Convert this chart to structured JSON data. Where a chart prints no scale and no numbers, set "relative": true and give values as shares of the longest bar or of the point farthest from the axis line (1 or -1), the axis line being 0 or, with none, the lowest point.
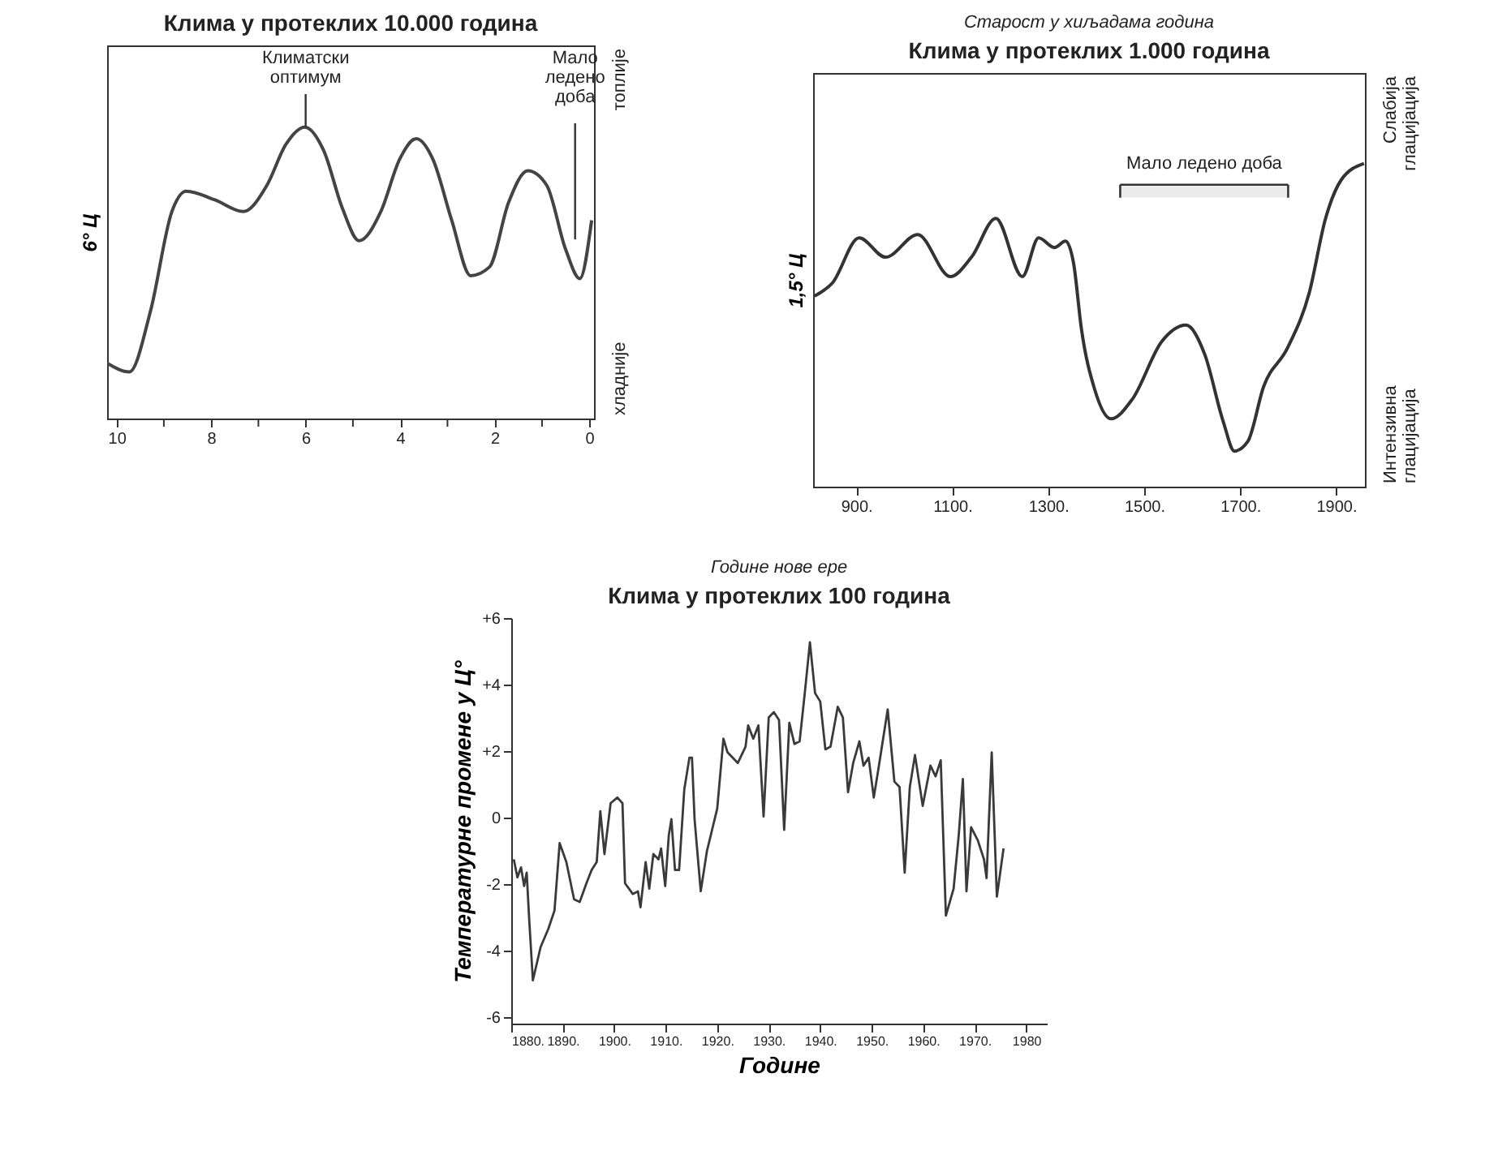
{
  "chart_data": [
    {
      "type": "line",
      "title": "Клима у протеклих 10.000 година",
      "ylabel": "6° Ц",
      "relative": true,
      "color": "#444444",
      "x": [
        10.2,
        9.73,
        9.28,
        8.83,
        8.53,
        7.92,
        7.32,
        6.82,
        6.42,
        6.02,
        5.62,
        5.22,
        4.87,
        4.41,
        4.01,
        3.66,
        3.31,
        2.91,
        2.51,
        2.11,
        1.71,
        1.3,
        0.9,
        0.5,
        0.2,
        -0.05
      ],
      "values": [
        0.19,
        0.16,
        0.37,
        0.71,
        0.78,
        0.75,
        0.71,
        0.8,
        0.94,
        1.0,
        0.92,
        0.72,
        0.61,
        0.71,
        0.89,
        0.96,
        0.89,
        0.68,
        0.49,
        0.52,
        0.74,
        0.85,
        0.8,
        0.58,
        0.48,
        0.68
      ],
      "xlim": [
        10.2,
        -0.1
      ],
      "xticks": [
        10,
        {
          "value": 9,
          "label": null
        },
        8,
        {
          "value": 7,
          "label": null
        },
        6,
        {
          "value": 5,
          "label": null
        },
        4,
        {
          "value": 3,
          "label": null
        },
        2,
        {
          "value": 1,
          "label": null
        },
        0
      ],
      "ref_lines": [
        {
          "axis": "x",
          "value": 0.3,
          "label": "Мало ледено доба"
        }
      ],
      "annotations": [
        {
          "text": "Климатски оптимум",
          "x": 6.0,
          "y": 1.0
        },
        "топлије",
        "хладније"
      ]
    },
    {
      "type": "line",
      "title": "Клима у протеклих 1.000 година",
      "subtitle": "Старост у хиљадама година",
      "ylabel": "1,5° Ц",
      "relative": true,
      "color": "#333333",
      "x": [
        813,
        850,
        906,
        961,
        1028,
        1096,
        1140,
        1191,
        1246,
        1280,
        1313,
        1336,
        1353,
        1369,
        1397,
        1431,
        1475,
        1537,
        1587,
        1626,
        1665,
        1688,
        1716,
        1749,
        1799,
        1844,
        1878,
        1911,
        1958
      ],
      "values": [
        0.59,
        0.63,
        0.77,
        0.71,
        0.78,
        0.65,
        0.71,
        0.83,
        0.65,
        0.77,
        0.74,
        0.76,
        0.69,
        0.49,
        0.3,
        0.21,
        0.27,
        0.45,
        0.5,
        0.41,
        0.2,
        0.11,
        0.14,
        0.31,
        0.43,
        0.6,
        0.83,
        0.95,
        1.0
      ],
      "xlim": [
        810,
        1960
      ],
      "xticks": [
        {
          "value": 900,
          "label": "900."
        },
        {
          "value": 1100,
          "label": "1100."
        },
        {
          "value": 1300,
          "label": "1300."
        },
        {
          "value": 1500,
          "label": "1500."
        },
        {
          "value": 1700,
          "label": "1700."
        },
        {
          "value": 1900,
          "label": "1900."
        }
      ],
      "bands": [
        {
          "axis": "x",
          "from": 1450,
          "to": 1800,
          "label": "Мало ледено доба"
        }
      ],
      "annotations": [
        "Слабија глацијација",
        "Интензивна глацијација"
      ]
    },
    {
      "type": "line",
      "title": "Клима у протеклих 100 година",
      "subtitle": "Године нове ере",
      "xlabel": "Године",
      "ylabel": "Температурне промене у Ц°",
      "color": "#3a3a3a",
      "x": [
        1880.5,
        1881.2,
        1881.9,
        1882.5,
        1883.0,
        1883.5,
        1884.2,
        1885.7,
        1887.2,
        1888.4,
        1889.4,
        1890.7,
        1892.2,
        1893.3,
        1894.6,
        1895.6,
        1896.6,
        1897.3,
        1898.1,
        1899.3,
        1900.6,
        1901.6,
        1902.1,
        1903.6,
        1904.6,
        1905.1,
        1906.1,
        1906.8,
        1907.6,
        1908.6,
        1909.1,
        1909.9,
        1910.6,
        1911.1,
        1911.8,
        1912.6,
        1913.6,
        1914.6,
        1915.1,
        1915.6,
        1916.8,
        1918.0,
        1919.0,
        1920.0,
        1921.2,
        1922.0,
        1924.0,
        1925.5,
        1926.0,
        1927.0,
        1928.0,
        1929.0,
        1930.0,
        1931.0,
        1932.0,
        1933.0,
        1934.0,
        1935.0,
        1936.0,
        1937.0,
        1938.0,
        1939.0,
        1940.0,
        1941.0,
        1942.0,
        1943.4,
        1944.4,
        1945.4,
        1946.4,
        1947.6,
        1948.4,
        1949.4,
        1950.4,
        1951.4,
        1953.1,
        1954.4,
        1955.4,
        1956.4,
        1957.4,
        1958.4,
        1959.9,
        1961.4,
        1962.4,
        1963.4,
        1964.4,
        1965.9,
        1966.9,
        1967.7,
        1968.4,
        1969.3,
        1970.6,
        1971.8,
        1972.3,
        1973.3,
        1974.3,
        1975.6
      ],
      "values": [
        -1.26,
        -1.8,
        -1.5,
        -2.06,
        -1.66,
        -3.1,
        -4.9,
        -3.9,
        -3.35,
        -2.8,
        -0.77,
        -1.34,
        -2.46,
        -2.54,
        -1.98,
        -1.58,
        -1.34,
        0.19,
        -1.1,
        0.43,
        0.6,
        0.43,
        -1.98,
        -2.3,
        -2.22,
        -2.7,
        -1.34,
        -2.14,
        -1.1,
        -1.26,
        -0.93,
        -2.06,
        -0.53,
        -0.05,
        -1.58,
        -1.58,
        0.84,
        1.8,
        1.8,
        -0.05,
        -2.22,
        -1.01,
        -0.37,
        0.27,
        2.37,
        1.96,
        1.64,
        2.13,
        2.77,
        2.37,
        2.77,
        0.03,
        3.01,
        3.17,
        2.93,
        -0.37,
        2.85,
        2.21,
        2.29,
        3.74,
        5.27,
        3.74,
        3.49,
        2.05,
        2.13,
        3.33,
        3.01,
        0.76,
        1.64,
        2.29,
        1.56,
        1.8,
        0.6,
        1.56,
        3.25,
        1.08,
        0.92,
        -1.66,
        0.92,
        1.88,
        0.35,
        1.56,
        1.24,
        1.72,
        -2.95,
        -2.14,
        -0.53,
        1.16,
        -2.22,
        -0.29,
        -0.69,
        -1.26,
        -1.82,
        1.96,
        -2.38,
        -0.93
      ],
      "xlim": [
        1880,
        1984
      ],
      "xticks": [
        {
          "value": 1880,
          "label": "1880."
        },
        {
          "value": 1890,
          "label": "1890."
        },
        {
          "value": 1900,
          "label": "1900."
        },
        {
          "value": 1910,
          "label": "1910."
        },
        {
          "value": 1920,
          "label": "1920."
        },
        {
          "value": 1930,
          "label": "1930."
        },
        {
          "value": 1940,
          "label": "1940."
        },
        {
          "value": 1950,
          "label": "1950."
        },
        {
          "value": 1960,
          "label": "1960."
        },
        {
          "value": 1970,
          "label": "1970."
        },
        1980
      ],
      "ylim": [
        -6.2,
        6
      ],
      "yticks": [
        {
          "value": 6,
          "label": "+6"
        },
        {
          "value": 4,
          "label": "+4"
        },
        {
          "value": 2,
          "label": "+2"
        },
        0,
        -2,
        -4,
        -6
      ]
    }
  ]
}
